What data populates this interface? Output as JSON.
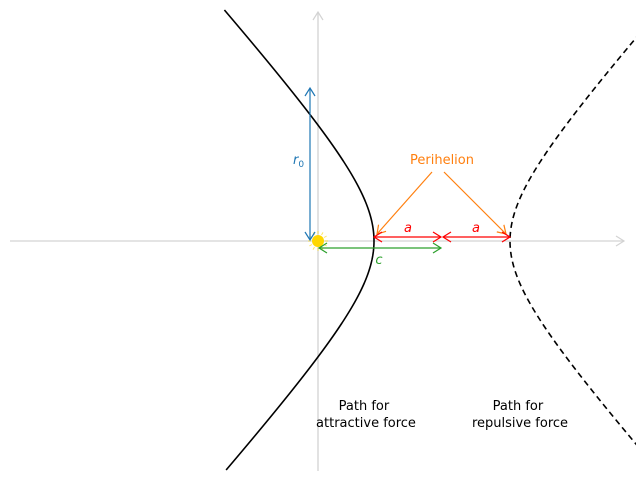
{
  "labels": {
    "r0": "r",
    "r0_sub": "0",
    "perihelion": "Perihelion",
    "a_left": "a",
    "a_right": "a",
    "c": "c",
    "attractive_line1": "Path for",
    "attractive_line2": "attractive force",
    "repulsive_line1": "Path for",
    "repulsive_line2": "repulsive force"
  },
  "colors": {
    "axis": "#d3d3d3",
    "attractive_path": "#000000",
    "repulsive_path": "#000000",
    "r0_arrow": "#1f77b4",
    "perihelion": "#ff7f0e",
    "a_arrows": "#ff0000",
    "c_arrow": "#2ca02c",
    "sun": "#ffd700"
  },
  "icons": {
    "focus": "sun-icon"
  }
}
